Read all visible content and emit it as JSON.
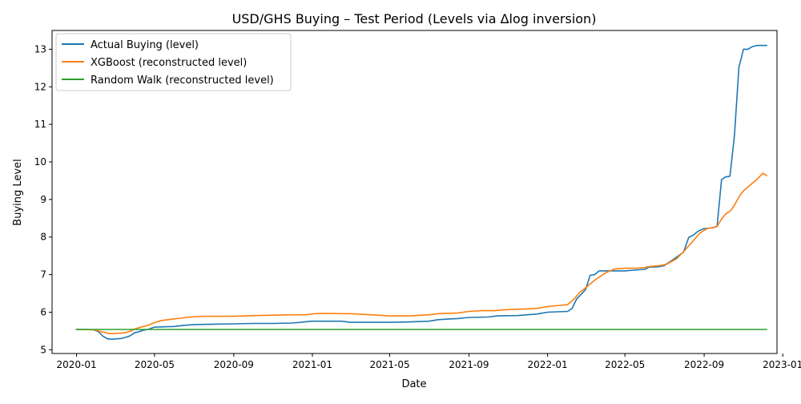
{
  "chart_data": {
    "type": "line",
    "title": "USD/GHS Buying – Test Period (Levels via Δlog inversion)",
    "xlabel": "Date",
    "ylabel": "Buying Level",
    "x_axis_type": "date",
    "xlim": [
      "2019-11-24",
      "2022-12-23"
    ],
    "ylim": [
      4.9,
      13.5
    ],
    "x_ticks": [
      "2020-01-01",
      "2020-05-01",
      "2020-09-01",
      "2021-01-01",
      "2021-05-01",
      "2021-09-01",
      "2022-01-01",
      "2022-05-01",
      "2022-09-01",
      "2023-01-01"
    ],
    "x_tick_labels": [
      "2020-01",
      "2020-05",
      "2020-09",
      "2021-01",
      "2021-05",
      "2021-09",
      "2022-01",
      "2022-05",
      "2022-09",
      "2023-01"
    ],
    "y_ticks": [
      5,
      6,
      7,
      8,
      9,
      10,
      11,
      12,
      13
    ],
    "grid": false,
    "legend_position": "top-left",
    "series": [
      {
        "name": "Actual Buying (level)",
        "color": "#1f77b4",
        "points": [
          [
            "2019-12-31",
            5.54
          ],
          [
            "2020-01-14",
            5.54
          ],
          [
            "2020-01-28",
            5.53
          ],
          [
            "2020-02-04",
            5.48
          ],
          [
            "2020-02-11",
            5.36
          ],
          [
            "2020-02-18",
            5.29
          ],
          [
            "2020-02-25",
            5.28
          ],
          [
            "2020-03-03",
            5.29
          ],
          [
            "2020-03-10",
            5.3
          ],
          [
            "2020-03-17",
            5.33
          ],
          [
            "2020-03-24",
            5.37
          ],
          [
            "2020-03-31",
            5.45
          ],
          [
            "2020-04-07",
            5.48
          ],
          [
            "2020-04-14",
            5.52
          ],
          [
            "2020-04-21",
            5.54
          ],
          [
            "2020-04-30",
            5.6
          ],
          [
            "2020-05-15",
            5.61
          ],
          [
            "2020-06-01",
            5.62
          ],
          [
            "2020-06-15",
            5.65
          ],
          [
            "2020-07-01",
            5.67
          ],
          [
            "2020-08-01",
            5.68
          ],
          [
            "2020-09-01",
            5.69
          ],
          [
            "2020-10-01",
            5.7
          ],
          [
            "2020-11-01",
            5.7
          ],
          [
            "2020-12-01",
            5.71
          ],
          [
            "2020-12-31",
            5.76
          ],
          [
            "2021-01-15",
            5.76
          ],
          [
            "2021-02-15",
            5.76
          ],
          [
            "2021-03-01",
            5.73
          ],
          [
            "2021-04-01",
            5.73
          ],
          [
            "2021-05-01",
            5.73
          ],
          [
            "2021-06-01",
            5.74
          ],
          [
            "2021-07-01",
            5.76
          ],
          [
            "2021-07-15",
            5.8
          ],
          [
            "2021-08-01",
            5.82
          ],
          [
            "2021-08-15",
            5.83
          ],
          [
            "2021-09-01",
            5.86
          ],
          [
            "2021-10-01",
            5.87
          ],
          [
            "2021-10-15",
            5.9
          ],
          [
            "2021-11-15",
            5.91
          ],
          [
            "2021-12-15",
            5.95
          ],
          [
            "2022-01-01",
            6.0
          ],
          [
            "2022-01-15",
            6.01
          ],
          [
            "2022-02-01",
            6.02
          ],
          [
            "2022-02-08",
            6.1
          ],
          [
            "2022-02-15",
            6.35
          ],
          [
            "2022-03-01",
            6.6
          ],
          [
            "2022-03-08",
            6.98
          ],
          [
            "2022-03-15",
            7.0
          ],
          [
            "2022-03-22",
            7.1
          ],
          [
            "2022-04-01",
            7.1
          ],
          [
            "2022-05-01",
            7.1
          ],
          [
            "2022-05-15",
            7.12
          ],
          [
            "2022-06-01",
            7.14
          ],
          [
            "2022-06-08",
            7.2
          ],
          [
            "2022-06-22",
            7.21
          ],
          [
            "2022-07-01",
            7.24
          ],
          [
            "2022-07-15",
            7.4
          ],
          [
            "2022-07-31",
            7.6
          ],
          [
            "2022-08-08",
            7.99
          ],
          [
            "2022-08-15",
            8.05
          ],
          [
            "2022-08-22",
            8.15
          ],
          [
            "2022-08-31",
            8.22
          ],
          [
            "2022-09-15",
            8.25
          ],
          [
            "2022-09-21",
            8.28
          ],
          [
            "2022-09-28",
            9.53
          ],
          [
            "2022-10-04",
            9.6
          ],
          [
            "2022-10-11",
            9.62
          ],
          [
            "2022-10-18",
            10.7
          ],
          [
            "2022-10-25",
            12.52
          ],
          [
            "2022-11-01",
            13.0
          ],
          [
            "2022-11-08",
            13.0
          ],
          [
            "2022-11-15",
            13.07
          ],
          [
            "2022-11-22",
            13.1
          ],
          [
            "2022-12-01",
            13.1
          ],
          [
            "2022-12-08",
            13.1
          ]
        ]
      },
      {
        "name": "XGBoost (reconstructed level)",
        "color": "#ff7f0e",
        "points": [
          [
            "2019-12-31",
            5.54
          ],
          [
            "2020-01-14",
            5.54
          ],
          [
            "2020-01-28",
            5.53
          ],
          [
            "2020-02-04",
            5.5
          ],
          [
            "2020-02-11",
            5.47
          ],
          [
            "2020-02-18",
            5.44
          ],
          [
            "2020-02-25",
            5.43
          ],
          [
            "2020-03-03",
            5.44
          ],
          [
            "2020-03-10",
            5.44
          ],
          [
            "2020-03-17",
            5.46
          ],
          [
            "2020-03-24",
            5.49
          ],
          [
            "2020-03-31",
            5.55
          ],
          [
            "2020-04-07",
            5.59
          ],
          [
            "2020-04-21",
            5.65
          ],
          [
            "2020-04-30",
            5.72
          ],
          [
            "2020-05-10",
            5.77
          ],
          [
            "2020-05-25",
            5.81
          ],
          [
            "2020-06-10",
            5.84
          ],
          [
            "2020-06-25",
            5.87
          ],
          [
            "2020-07-15",
            5.89
          ],
          [
            "2020-08-15",
            5.89
          ],
          [
            "2020-09-01",
            5.89
          ],
          [
            "2020-10-01",
            5.91
          ],
          [
            "2020-11-01",
            5.92
          ],
          [
            "2020-12-01",
            5.93
          ],
          [
            "2020-12-20",
            5.93
          ],
          [
            "2021-01-05",
            5.96
          ],
          [
            "2021-01-20",
            5.97
          ],
          [
            "2021-02-15",
            5.96
          ],
          [
            "2021-03-01",
            5.96
          ],
          [
            "2021-04-01",
            5.93
          ],
          [
            "2021-05-01",
            5.9
          ],
          [
            "2021-06-01",
            5.9
          ],
          [
            "2021-07-01",
            5.93
          ],
          [
            "2021-07-15",
            5.96
          ],
          [
            "2021-08-15",
            5.98
          ],
          [
            "2021-09-01",
            6.02
          ],
          [
            "2021-09-20",
            6.04
          ],
          [
            "2021-10-10",
            6.04
          ],
          [
            "2021-11-01",
            6.07
          ],
          [
            "2021-11-20",
            6.08
          ],
          [
            "2021-12-15",
            6.1
          ],
          [
            "2022-01-01",
            6.15
          ],
          [
            "2022-01-20",
            6.18
          ],
          [
            "2022-02-01",
            6.2
          ],
          [
            "2022-02-10",
            6.33
          ],
          [
            "2022-02-20",
            6.53
          ],
          [
            "2022-03-01",
            6.65
          ],
          [
            "2022-03-15",
            6.85
          ],
          [
            "2022-04-01",
            7.05
          ],
          [
            "2022-04-15",
            7.15
          ],
          [
            "2022-05-01",
            7.17
          ],
          [
            "2022-05-20",
            7.17
          ],
          [
            "2022-06-01",
            7.19
          ],
          [
            "2022-06-10",
            7.22
          ],
          [
            "2022-06-25",
            7.24
          ],
          [
            "2022-07-05",
            7.28
          ],
          [
            "2022-07-20",
            7.42
          ],
          [
            "2022-08-01",
            7.63
          ],
          [
            "2022-08-15",
            7.9
          ],
          [
            "2022-08-25",
            8.1
          ],
          [
            "2022-09-05",
            8.22
          ],
          [
            "2022-09-21",
            8.28
          ],
          [
            "2022-09-28",
            8.48
          ],
          [
            "2022-10-05",
            8.62
          ],
          [
            "2022-10-12",
            8.7
          ],
          [
            "2022-10-19",
            8.88
          ],
          [
            "2022-10-26",
            9.1
          ],
          [
            "2022-11-02",
            9.25
          ],
          [
            "2022-11-09",
            9.35
          ],
          [
            "2022-11-16",
            9.45
          ],
          [
            "2022-11-23",
            9.55
          ],
          [
            "2022-12-01",
            9.7
          ],
          [
            "2022-12-08",
            9.63
          ]
        ]
      },
      {
        "name": "Random Walk (reconstructed level)",
        "color": "#2ca02c",
        "points": [
          [
            "2019-12-31",
            5.54
          ],
          [
            "2022-12-08",
            5.54
          ]
        ]
      }
    ]
  }
}
